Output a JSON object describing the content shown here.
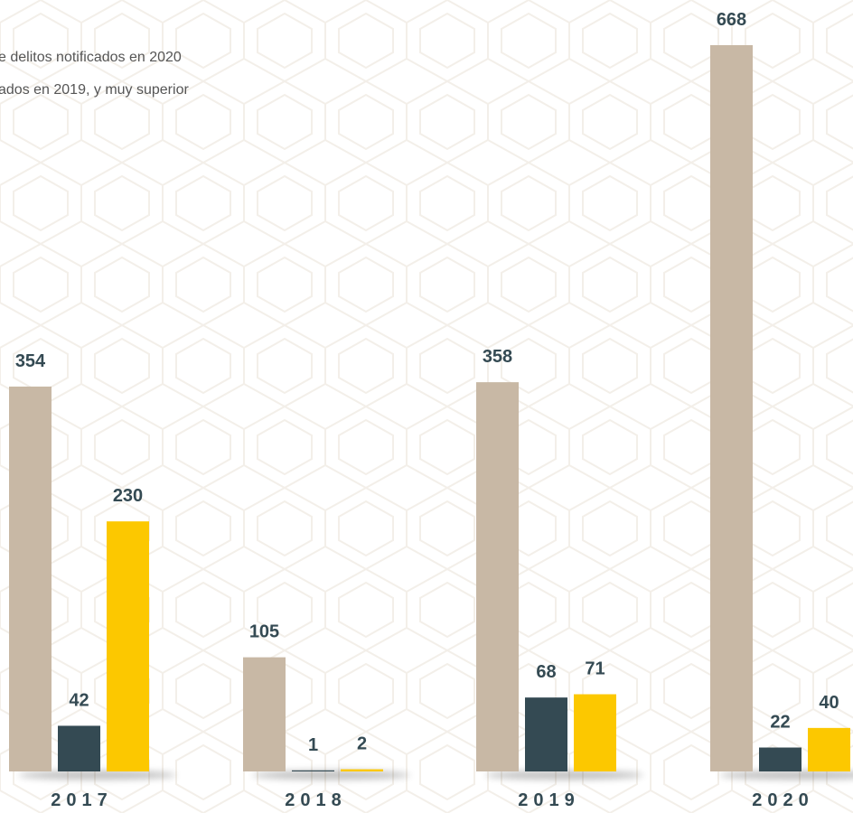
{
  "chart_data": {
    "type": "bar",
    "subtitle_lines": [
      "e delitos notificados en 2020",
      "ados en 2019, y muy superior"
    ],
    "categories": [
      "2017",
      "2018",
      "2019",
      "2020"
    ],
    "series": [
      {
        "color": "#c8b8a5",
        "values": [
          354,
          105,
          358,
          668
        ]
      },
      {
        "color": "#344a53",
        "values": [
          42,
          1,
          68,
          22
        ]
      },
      {
        "color": "#fcc800",
        "values": [
          230,
          2,
          71,
          40
        ]
      }
    ]
  }
}
